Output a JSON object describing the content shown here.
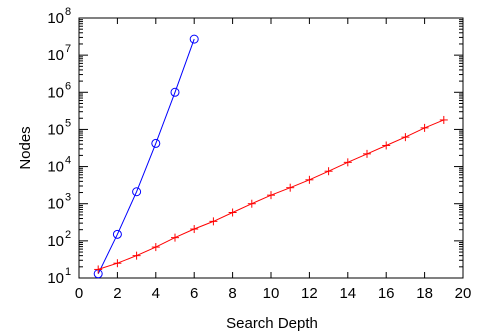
{
  "chart_data": {
    "type": "line",
    "xlabel": "Search Depth",
    "ylabel": "Nodes",
    "xlim": [
      0,
      20
    ],
    "ylim": [
      10,
      100000000
    ],
    "yscale": "log",
    "grid": false,
    "legend": "none",
    "xticks": [
      "0",
      "2",
      "4",
      "6",
      "8",
      "10",
      "12",
      "14",
      "16",
      "18",
      "20"
    ],
    "xtick_values": [
      0,
      2,
      4,
      6,
      8,
      10,
      12,
      14,
      16,
      18,
      20
    ],
    "ytick_exponents": [
      "1",
      "2",
      "3",
      "4",
      "5",
      "6",
      "7",
      "8"
    ],
    "ytick_base": "10",
    "series": [
      {
        "color": "#0000ff",
        "marker": "circle",
        "x": [
          1,
          2,
          3,
          4,
          5,
          6
        ],
        "y": [
          13,
          150,
          2100,
          42000,
          1000000,
          27000000
        ]
      },
      {
        "color": "#ff0000",
        "marker": "plus",
        "x": [
          1,
          2,
          3,
          4,
          5,
          6,
          7,
          8,
          9,
          10,
          11,
          12,
          13,
          14,
          15,
          16,
          17,
          18,
          19
        ],
        "y": [
          17,
          25,
          40,
          68,
          122,
          208,
          335,
          580,
          1000,
          1700,
          2700,
          4400,
          7500,
          13000,
          22000,
          37000,
          62000,
          110000,
          180000
        ]
      }
    ]
  }
}
